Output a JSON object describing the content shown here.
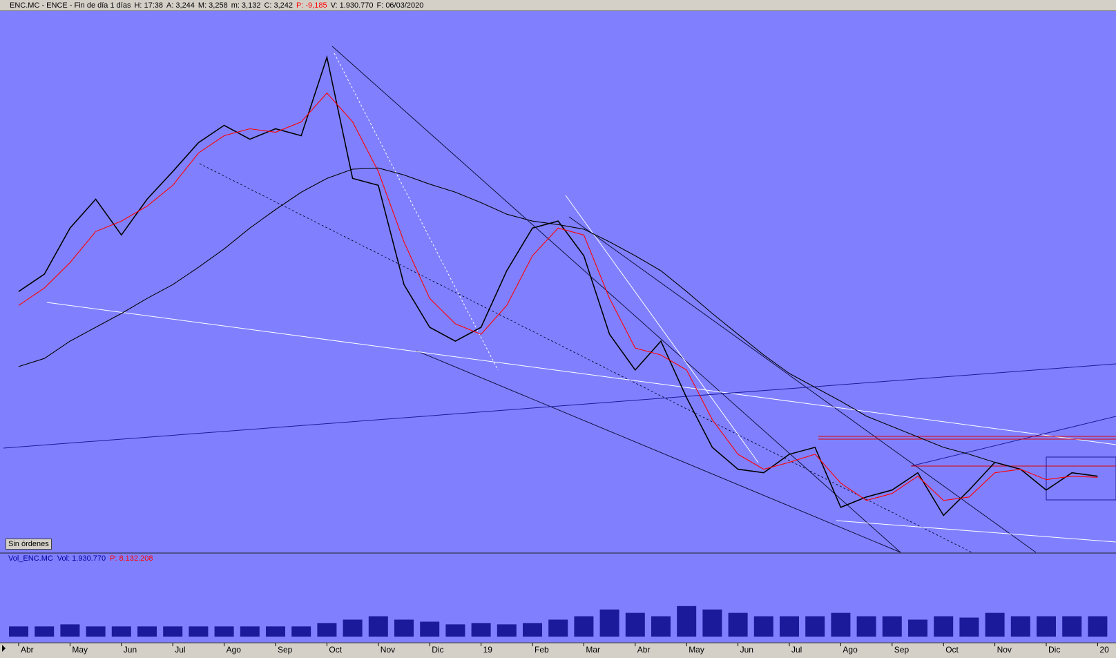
{
  "header": {
    "symbol": "ENC.MC - ENCE - Fin de día 1 días",
    "fields": [
      {
        "label": "H:",
        "text": "17:38",
        "color": "#000000"
      },
      {
        "label": "A:",
        "text": "3,244",
        "color": "#000000"
      },
      {
        "label": "M:",
        "text": "3,258",
        "color": "#000000"
      },
      {
        "label": "m:",
        "text": "3,132",
        "color": "#000000"
      },
      {
        "label": "C:",
        "text": "3,242",
        "color": "#000000"
      },
      {
        "label": "P:",
        "text": "-9,185",
        "color": "#ff0000"
      },
      {
        "label": "V:",
        "text": "1.930.770",
        "color": "#000000"
      },
      {
        "label": "F:",
        "text": "06/03/2020",
        "color": "#000000"
      }
    ]
  },
  "button": "Sin órdenes",
  "chart_data": [
    {
      "type": "line",
      "categories": [
        "Abr",
        null,
        "May",
        null,
        "Jun",
        null,
        "Jul",
        null,
        "Ago",
        null,
        "Sep",
        null,
        "Oct",
        null,
        "Nov",
        null,
        "Dic",
        null,
        "19",
        null,
        "Feb",
        null,
        "Mar",
        null,
        "Abr",
        null,
        "May",
        null,
        "Jun",
        null,
        "Jul",
        null,
        "Ago",
        null,
        "Sep",
        null,
        "Oct",
        null,
        "Nov",
        null,
        "Dic",
        null,
        "20"
      ],
      "series": [
        {
          "color": "#000000",
          "values": [
            4.9,
            5.05,
            5.45,
            5.7,
            5.39,
            5.7,
            5.94,
            6.19,
            6.34,
            6.22,
            6.31,
            6.25,
            6.93,
            5.88,
            5.82,
            4.96,
            4.59,
            4.47,
            4.59,
            5.08,
            5.45,
            5.51,
            5.21,
            4.53,
            4.22,
            4.47,
            3.98,
            3.55,
            3.36,
            3.33,
            3.49,
            3.55,
            3.03,
            3.12,
            3.18,
            3.33,
            2.96,
            3.18,
            3.42,
            3.36,
            3.18,
            3.33,
            3.3
          ]
        },
        {
          "color": "#ff0000",
          "values": [
            4.78,
            4.93,
            5.15,
            5.42,
            5.51,
            5.64,
            5.82,
            6.1,
            6.25,
            6.31,
            6.28,
            6.37,
            6.62,
            6.37,
            5.94,
            5.33,
            4.84,
            4.62,
            4.53,
            4.78,
            5.21,
            5.45,
            5.39,
            4.84,
            4.41,
            4.35,
            4.22,
            3.79,
            3.49,
            3.36,
            3.42,
            3.49,
            3.24,
            3.09,
            3.15,
            3.3,
            3.09,
            3.12,
            3.33,
            3.36,
            3.27,
            3.3,
            3.29
          ]
        },
        {
          "color": "#000000",
          "values": [
            4.25,
            4.32,
            4.47,
            4.59,
            4.71,
            4.84,
            4.96,
            5.11,
            5.27,
            5.45,
            5.61,
            5.76,
            5.88,
            5.96,
            5.97,
            5.91,
            5.83,
            5.76,
            5.67,
            5.57,
            5.51,
            5.48,
            5.44,
            5.33,
            5.21,
            5.08,
            4.9,
            4.71,
            4.53,
            4.35,
            4.19,
            4.07,
            3.95,
            3.82,
            3.73,
            3.64,
            3.55,
            3.49,
            3.42,
            null,
            null,
            null,
            null
          ]
        }
      ],
      "ylim": [
        2.64,
        7.33
      ]
    },
    {
      "type": "bar",
      "title": "Vol_ENC.MC",
      "fields": [
        {
          "label": "Vol:",
          "text": "1.930.770",
          "color": "#0000a0"
        },
        {
          "label": "P:",
          "text": "8.132.208",
          "color": "#ff0000"
        }
      ],
      "color": "#1a1a9a",
      "values": [
        1200000,
        1200000,
        1440000,
        1200000,
        1200000,
        1200000,
        1200000,
        1200000,
        1200000,
        1200000,
        1200000,
        1200000,
        1600000,
        2000000,
        2400000,
        2000000,
        1760000,
        1440000,
        1600000,
        1440000,
        1600000,
        2000000,
        2400000,
        3200000,
        2800000,
        2400000,
        3600000,
        3200000,
        2800000,
        2400000,
        2400000,
        2400000,
        2800000,
        2400000,
        2400000,
        2000000,
        2400000,
        2240000,
        2800000,
        2400000,
        2400000,
        2400000,
        2400000
      ],
      "ylim": [
        0,
        8800000
      ]
    }
  ]
}
